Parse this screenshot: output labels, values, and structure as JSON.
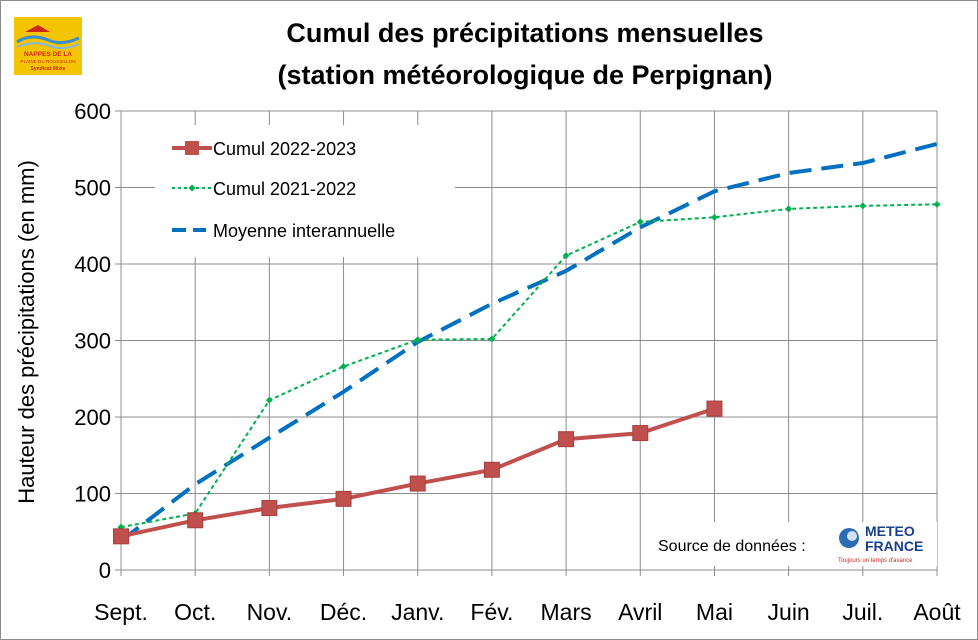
{
  "chart_data": {
    "type": "line",
    "title_lines": [
      "Cumul des précipitations mensuelles",
      "(station météorologique de Perpignan)"
    ],
    "ylabel": "Hauteur des précipitations (en mm)",
    "xlabel": "",
    "categories": [
      "Sept.",
      "Oct.",
      "Nov.",
      "Déc.",
      "Janv.",
      "Fév.",
      "Mars",
      "Avril",
      "Mai",
      "Juin",
      "Juil.",
      "Août"
    ],
    "ylim": [
      0,
      600
    ],
    "yticks": [
      0,
      100,
      200,
      300,
      400,
      500,
      600
    ],
    "grid": true,
    "legend_position": "top-left",
    "series": [
      {
        "name": "Cumul 2022-2023",
        "color": "#c0504d",
        "style": "solid-square-markers",
        "values": [
          44,
          65,
          81,
          93,
          113,
          131,
          171,
          179,
          211,
          null,
          null,
          null
        ]
      },
      {
        "name": "Cumul 2021-2022",
        "color": "#00b050",
        "style": "dotted-diamond-markers",
        "values": [
          56,
          74,
          222,
          266,
          301,
          302,
          411,
          455,
          461,
          472,
          476,
          478
        ]
      },
      {
        "name": "Moyenne interannuelle",
        "color": "#0070c0",
        "style": "long-dash",
        "values": [
          38,
          112,
          173,
          233,
          298,
          348,
          391,
          448,
          495,
          519,
          532,
          557
        ]
      }
    ],
    "source_label": "Source de données :"
  },
  "logos": {
    "nappes": {
      "lines": [
        "NAPPES DE LA",
        "PLAINE DU ROUSSILLON",
        "Syndicat Mixte"
      ],
      "colors": {
        "background": "#f5c400",
        "text": "#d0271d",
        "water": "#3b8fd0"
      }
    },
    "meteo": {
      "lines": [
        "METEO",
        "FRANCE"
      ],
      "tagline": "Toujours un temps d'avance",
      "colors": {
        "text": "#1a3f8f",
        "tagline": "#d0271d",
        "disc": "#2b6db5"
      }
    }
  }
}
